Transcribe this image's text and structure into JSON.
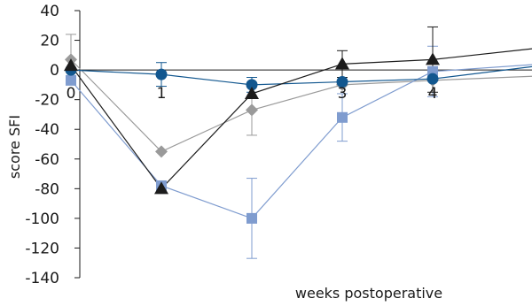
{
  "chart_data": {
    "type": "line",
    "title": "",
    "xlabel": "weeks postoperative",
    "ylabel": "score SFI",
    "xlim": [
      0,
      5.2
    ],
    "ylim": [
      -140,
      40
    ],
    "x_ticks": [
      {
        "value": 0,
        "label": "0"
      },
      {
        "value": 1,
        "label": "1"
      },
      {
        "value": 3,
        "label": "3"
      },
      {
        "value": 4,
        "label": "4"
      }
    ],
    "y_ticks": [
      {
        "value": 40,
        "label": "40"
      },
      {
        "value": 20,
        "label": "20"
      },
      {
        "value": 0,
        "label": "0"
      },
      {
        "value": -20,
        "label": "-20"
      },
      {
        "value": -40,
        "label": "-40"
      },
      {
        "value": -60,
        "label": "-60"
      },
      {
        "value": -80,
        "label": "-80"
      },
      {
        "value": -100,
        "label": "-100"
      },
      {
        "value": -120,
        "label": "-120"
      },
      {
        "value": -140,
        "label": "-140"
      }
    ],
    "grid": false,
    "legend": "none",
    "baseline": 0,
    "series": [
      {
        "marker": "diamond",
        "color": "#9a9a9a",
        "x": [
          0,
          1,
          2,
          3,
          4,
          5.2
        ],
        "y": [
          7,
          -55,
          -27,
          -10,
          -7,
          -4
        ],
        "err": [
          17,
          0,
          17,
          0,
          0,
          0
        ]
      },
      {
        "marker": "square",
        "color": "#7f9ccf",
        "x": [
          0,
          1,
          2,
          3,
          4,
          5.2
        ],
        "y": [
          -7,
          -78,
          -100,
          -32,
          -1,
          4
        ],
        "err": [
          0,
          0,
          27,
          16,
          17,
          0
        ]
      },
      {
        "marker": "circle",
        "color": "#12578f",
        "x": [
          0,
          1,
          2,
          3,
          4,
          5.2
        ],
        "y": [
          0,
          -3,
          -10,
          -8,
          -6,
          3
        ],
        "err": [
          0,
          8,
          5,
          0,
          0,
          0
        ]
      },
      {
        "marker": "triangle",
        "color": "#1c1c1c",
        "x": [
          0,
          1,
          2,
          3,
          4,
          5.2
        ],
        "y": [
          3,
          -80,
          -16,
          4,
          7,
          15
        ],
        "err": [
          0,
          0,
          0,
          9,
          22,
          0
        ]
      }
    ]
  }
}
